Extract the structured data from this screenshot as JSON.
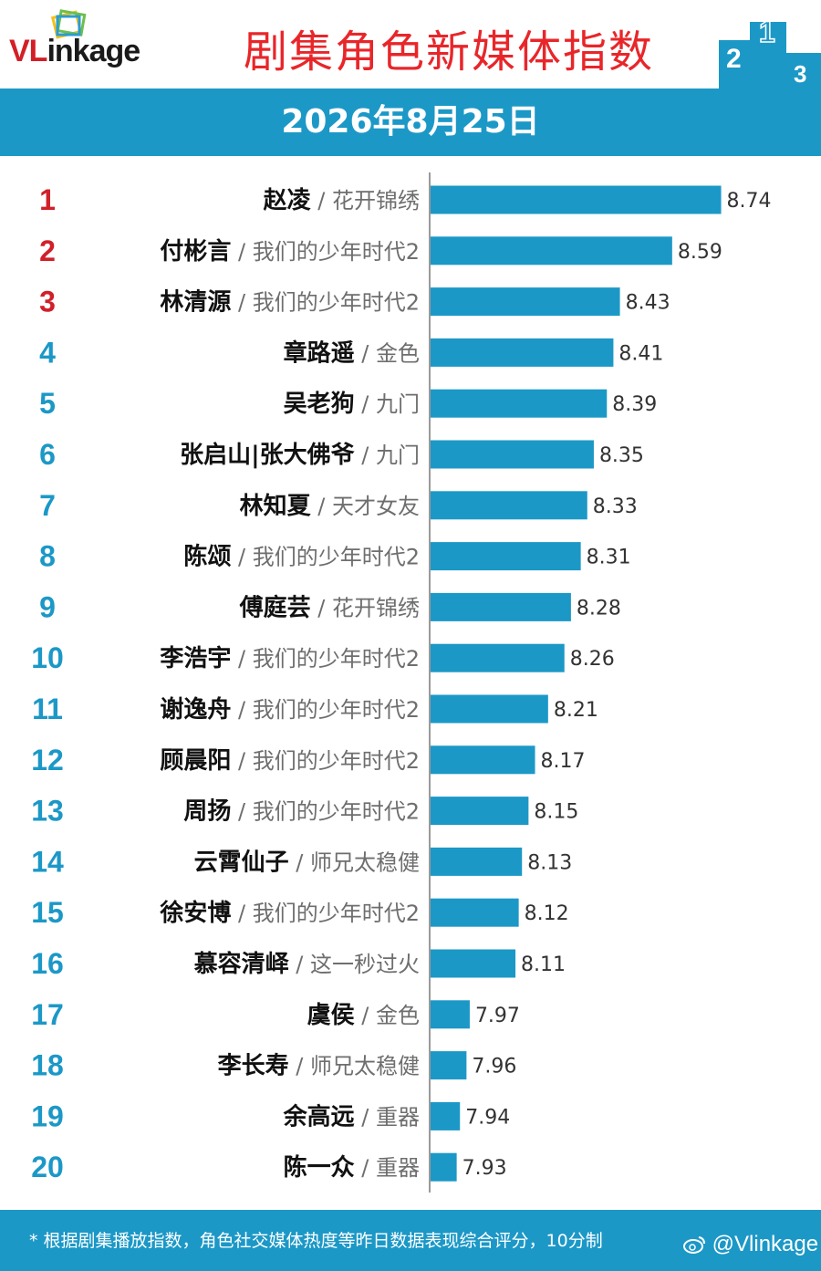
{
  "header": {
    "logo_text_vl": "VL",
    "logo_text_rest": "inkage",
    "title": "剧集角色新媒体指数",
    "podium_numbers": [
      "2",
      "1",
      "3"
    ]
  },
  "date_bar": {
    "date": "2026年8月25日"
  },
  "footer": {
    "footnote": "* 根据剧集播放指数，角色社交媒体热度等昨日数据表现综合评分，10分制",
    "weibo_handle": "@Vlinkage"
  },
  "colors": {
    "bar": "#1c98c7",
    "rank_top3": "#d0202a",
    "rank_other": "#1c98c7",
    "title": "#e8262a",
    "header_bar": "#1c98c7"
  },
  "chart_data": {
    "type": "bar",
    "orientation": "horizontal",
    "xlim": [
      7.85,
      8.8
    ],
    "series": [
      {
        "values": [
          8.74,
          8.59,
          8.43,
          8.41,
          8.39,
          8.35,
          8.33,
          8.31,
          8.28,
          8.26,
          8.21,
          8.17,
          8.15,
          8.13,
          8.12,
          8.11,
          7.97,
          7.96,
          7.94,
          7.93
        ]
      }
    ],
    "rows": [
      {
        "rank": "1",
        "name": "赵凌",
        "drama": "花开锦绣",
        "value": 8.74,
        "value_label": "8.74"
      },
      {
        "rank": "2",
        "name": "付彬言",
        "drama": "我们的少年时代2",
        "value": 8.59,
        "value_label": "8.59"
      },
      {
        "rank": "3",
        "name": "林清源",
        "drama": "我们的少年时代2",
        "value": 8.43,
        "value_label": "8.43"
      },
      {
        "rank": "4",
        "name": "章路遥",
        "drama": "金色",
        "value": 8.41,
        "value_label": "8.41"
      },
      {
        "rank": "5",
        "name": "吴老狗",
        "drama": "九门",
        "value": 8.39,
        "value_label": "8.39"
      },
      {
        "rank": "6",
        "name": "张启山|张大佛爷",
        "drama": "九门",
        "value": 8.35,
        "value_label": "8.35"
      },
      {
        "rank": "7",
        "name": "林知夏",
        "drama": "天才女友",
        "value": 8.33,
        "value_label": "8.33"
      },
      {
        "rank": "8",
        "name": "陈颂",
        "drama": "我们的少年时代2",
        "value": 8.31,
        "value_label": "8.31"
      },
      {
        "rank": "9",
        "name": "傅庭芸",
        "drama": "花开锦绣",
        "value": 8.28,
        "value_label": "8.28"
      },
      {
        "rank": "10",
        "name": "李浩宇",
        "drama": "我们的少年时代2",
        "value": 8.26,
        "value_label": "8.26"
      },
      {
        "rank": "11",
        "name": "谢逸舟",
        "drama": "我们的少年时代2",
        "value": 8.21,
        "value_label": "8.21"
      },
      {
        "rank": "12",
        "name": "顾晨阳",
        "drama": "我们的少年时代2",
        "value": 8.17,
        "value_label": "8.17"
      },
      {
        "rank": "13",
        "name": "周扬",
        "drama": "我们的少年时代2",
        "value": 8.15,
        "value_label": "8.15"
      },
      {
        "rank": "14",
        "name": "云霄仙子",
        "drama": "师兄太稳健",
        "value": 8.13,
        "value_label": "8.13"
      },
      {
        "rank": "15",
        "name": "徐安博",
        "drama": "我们的少年时代2",
        "value": 8.12,
        "value_label": "8.12"
      },
      {
        "rank": "16",
        "name": "慕容清峄",
        "drama": "这一秒过火",
        "value": 8.11,
        "value_label": "8.11"
      },
      {
        "rank": "17",
        "name": "虞侯",
        "drama": "金色",
        "value": 7.97,
        "value_label": "7.97"
      },
      {
        "rank": "18",
        "name": "李长寿",
        "drama": "师兄太稳健",
        "value": 7.96,
        "value_label": "7.96"
      },
      {
        "rank": "19",
        "name": "余高远",
        "drama": "重器",
        "value": 7.94,
        "value_label": "7.94"
      },
      {
        "rank": "20",
        "name": "陈一众",
        "drama": "重器",
        "value": 7.93,
        "value_label": "7.93"
      }
    ]
  }
}
